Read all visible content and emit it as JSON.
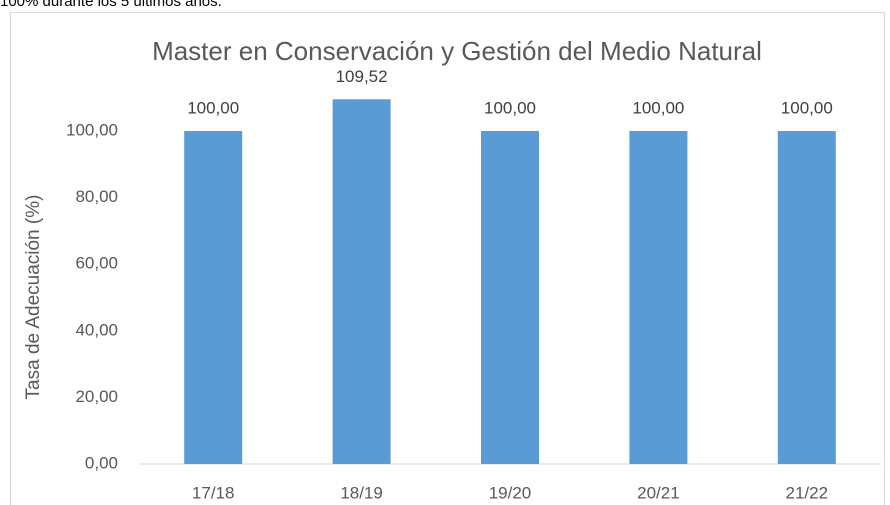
{
  "intro_text": "100% durante los 5 últimos años.",
  "chart_data": {
    "type": "bar",
    "title": "Master en  Conservación y Gestión del Medio Natural",
    "y_label": "Tasa de Adecuación (%)",
    "categories": [
      "17/18",
      "18/19",
      "19/20",
      "20/21",
      "21/22"
    ],
    "values": [
      100,
      109.52,
      100,
      100,
      100
    ],
    "value_labels": [
      "100,00",
      "109,52",
      "100,00",
      "100,00",
      "100,00"
    ],
    "color": "#5b9bd5",
    "ylim": [
      0,
      120
    ],
    "yticks": [
      {
        "value": 0,
        "label": "0,00"
      },
      {
        "value": 20,
        "label": "20,00"
      },
      {
        "value": 40,
        "label": "40,00"
      },
      {
        "value": 60,
        "label": "60,00"
      },
      {
        "value": 80,
        "label": "80,00"
      },
      {
        "value": 100,
        "label": "100,00"
      }
    ],
    "grid": false
  }
}
